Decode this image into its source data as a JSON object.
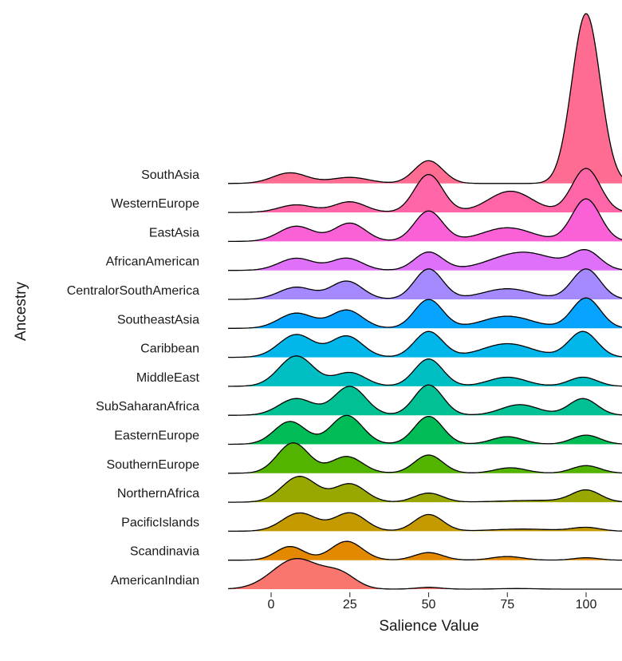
{
  "chart_data": {
    "type": "ridgeline",
    "xlabel": "Salience Value",
    "ylabel": "Ancestry",
    "x_ticks": [
      0,
      25,
      50,
      75,
      100
    ],
    "xlim": [
      -13,
      112
    ],
    "grid": false,
    "legend": "none",
    "series": [
      {
        "name": "AmericanIndian",
        "color": "#F8766D",
        "peaks": [
          [
            8,
            7.5,
            1.0
          ],
          [
            22,
            5,
            0.45
          ],
          [
            50,
            4,
            0.06
          ],
          [
            78,
            6,
            0.02
          ]
        ]
      },
      {
        "name": "Scandinavia",
        "color": "#E38900",
        "peaks": [
          [
            6,
            4.5,
            0.45
          ],
          [
            24,
            5,
            0.62
          ],
          [
            50,
            4.5,
            0.25
          ],
          [
            75,
            5,
            0.12
          ],
          [
            100,
            4,
            0.08
          ]
        ]
      },
      {
        "name": "PacificIslands",
        "color": "#C49A00",
        "peaks": [
          [
            9,
            5.5,
            0.6
          ],
          [
            25,
            5,
            0.6
          ],
          [
            50,
            4.5,
            0.55
          ],
          [
            80,
            10,
            0.07
          ],
          [
            100,
            4.5,
            0.12
          ]
        ]
      },
      {
        "name": "NorthernAfrica",
        "color": "#99A800",
        "peaks": [
          [
            9,
            5.5,
            0.85
          ],
          [
            25,
            5,
            0.6
          ],
          [
            50,
            4.5,
            0.3
          ],
          [
            85,
            12,
            0.06
          ],
          [
            100,
            4.5,
            0.38
          ]
        ]
      },
      {
        "name": "SouthernEurope",
        "color": "#53B400",
        "peaks": [
          [
            7,
            5,
            1.0
          ],
          [
            24,
            5,
            0.55
          ],
          [
            50,
            4.5,
            0.6
          ],
          [
            76,
            5,
            0.18
          ],
          [
            100,
            4.5,
            0.25
          ]
        ]
      },
      {
        "name": "EasternEurope",
        "color": "#00BC56",
        "peaks": [
          [
            6,
            5,
            0.75
          ],
          [
            24,
            5,
            0.95
          ],
          [
            50,
            4.5,
            0.92
          ],
          [
            75,
            5,
            0.25
          ],
          [
            100,
            4.5,
            0.3
          ]
        ]
      },
      {
        "name": "SubSaharanAfrica",
        "color": "#00C094",
        "peaks": [
          [
            8,
            5.5,
            0.55
          ],
          [
            25,
            5,
            0.95
          ],
          [
            50,
            4.5,
            1.0
          ],
          [
            79,
            6,
            0.35
          ],
          [
            99,
            4.5,
            0.55
          ]
        ]
      },
      {
        "name": "MiddleEast",
        "color": "#00BFC4",
        "peaks": [
          [
            8,
            5.5,
            1.0
          ],
          [
            25,
            5,
            0.45
          ],
          [
            50,
            4.5,
            0.9
          ],
          [
            75,
            6,
            0.3
          ],
          [
            99,
            4.5,
            0.3
          ]
        ]
      },
      {
        "name": "Caribbean",
        "color": "#00B6EB",
        "peaks": [
          [
            8,
            5.5,
            0.75
          ],
          [
            24,
            5,
            0.7
          ],
          [
            50,
            4.5,
            0.85
          ],
          [
            75,
            8,
            0.45
          ],
          [
            99,
            4.5,
            0.85
          ]
        ]
      },
      {
        "name": "SoutheastAsia",
        "color": "#06A4FF",
        "peaks": [
          [
            8,
            5.5,
            0.5
          ],
          [
            24,
            5,
            0.6
          ],
          [
            50,
            4.5,
            0.95
          ],
          [
            75,
            8,
            0.4
          ],
          [
            100,
            4.5,
            1.0
          ]
        ]
      },
      {
        "name": "CentralorSouthAmerica",
        "color": "#A58AFF",
        "peaks": [
          [
            8,
            5.5,
            0.4
          ],
          [
            24,
            5,
            0.6
          ],
          [
            50,
            4.5,
            1.0
          ],
          [
            75,
            8,
            0.35
          ],
          [
            100,
            4.5,
            1.0
          ]
        ]
      },
      {
        "name": "AfricanAmerican",
        "color": "#DF70F8",
        "peaks": [
          [
            8,
            5.5,
            0.4
          ],
          [
            24,
            5,
            0.4
          ],
          [
            50,
            4.5,
            0.6
          ],
          [
            80,
            10,
            0.6
          ],
          [
            100,
            4.5,
            0.6
          ]
        ]
      },
      {
        "name": "EastAsia",
        "color": "#FB61D7",
        "peaks": [
          [
            8,
            5.5,
            0.5
          ],
          [
            25,
            5,
            0.6
          ],
          [
            50,
            4.5,
            1.0
          ],
          [
            75,
            8,
            0.45
          ],
          [
            100,
            4.5,
            1.4
          ]
        ]
      },
      {
        "name": "WesternEurope",
        "color": "#FF66A8",
        "peaks": [
          [
            8,
            5.5,
            0.25
          ],
          [
            25,
            5,
            0.35
          ],
          [
            50,
            4.5,
            1.25
          ],
          [
            76,
            7,
            0.7
          ],
          [
            100,
            4.5,
            1.45
          ]
        ]
      },
      {
        "name": "SouthAsia",
        "color": "#FF6C91",
        "peaks": [
          [
            6,
            5.5,
            0.35
          ],
          [
            25,
            6,
            0.2
          ],
          [
            50,
            4.5,
            0.75
          ],
          [
            100,
            4.5,
            5.6
          ]
        ]
      }
    ]
  }
}
